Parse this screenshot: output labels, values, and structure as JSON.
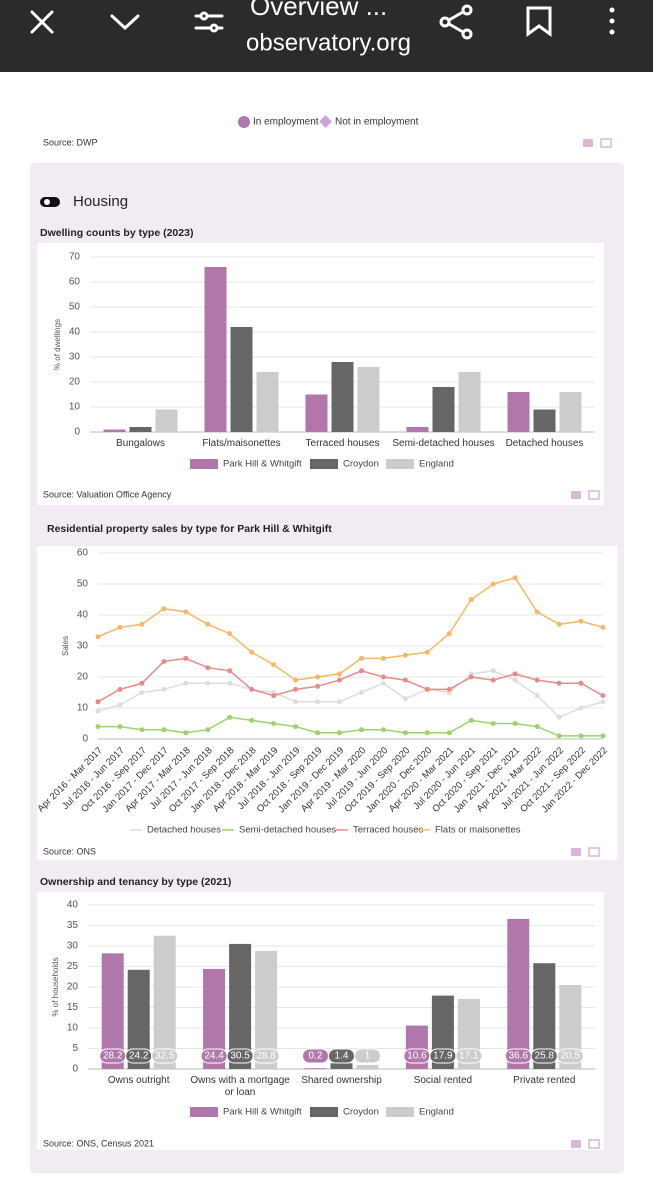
{
  "browser": {
    "title": "Overview ...",
    "url": "observatory.org"
  },
  "previous_chart": {
    "legend": [
      "In employment",
      "Not in employment"
    ],
    "source": "Source: DWP"
  },
  "section_title": "Housing",
  "chart_data": [
    {
      "type": "bar",
      "title": "Dwelling counts by type (2023)",
      "y_label": "% of dwellings",
      "categories": [
        "Bungalows",
        "Flats/maisonettes",
        "Terraced houses",
        "Semi-detached houses",
        "Detached houses"
      ],
      "series": [
        {
          "name": "Park Hill & Whitgift",
          "color": "#b176aa",
          "values": [
            1,
            66,
            15,
            2,
            16
          ]
        },
        {
          "name": "Croydon",
          "color": "#666666",
          "values": [
            2,
            42,
            28,
            18,
            9
          ]
        },
        {
          "name": "England",
          "color": "#cccccc",
          "values": [
            9,
            24,
            26,
            24,
            16
          ]
        }
      ],
      "ylim": [
        0,
        70
      ],
      "yticks": [
        0,
        10,
        20,
        30,
        40,
        50,
        60,
        70
      ],
      "grid": true,
      "data_labels": false,
      "source": "Source: Valuation Office Agency"
    },
    {
      "type": "line",
      "title": "Residential property sales by type for Park Hill & Whitgift",
      "y_label": "Sales",
      "categories": [
        "Apr 2016 - Mar 2017",
        "Jul 2016 - Jun 2017",
        "Oct 2016 - Sep 2017",
        "Jan 2017 - Dec 2017",
        "Apr 2017 - Mar 2018",
        "Jul 2017 - Jun 2018",
        "Oct 2017 - Sep 2018",
        "Jan 2018 - Dec 2018",
        "Apr 2018 - Mar 2019",
        "Jul 2018 - Jun 2019",
        "Oct 2018 - Sep 2019",
        "Jan 2019 - Dec 2019",
        "Apr 2019 - Mar 2020",
        "Jul 2019 - Jun 2020",
        "Oct 2019 - Sep 2020",
        "Jan 2020 - Dec 2020",
        "Apr 2020 - Mar 2021",
        "Jul 2020 - Jun 2021",
        "Oct 2020 - Sep 2021",
        "Jan 2021 - Dec 2021",
        "Apr 2021 - Mar 2022",
        "Jul 2021 - Jun 2022",
        "Oct 2021 - Sep 2022",
        "Jan 2022 - Dec 2022"
      ],
      "series": [
        {
          "name": "Detached houses",
          "color": "#dddddd",
          "values": [
            9,
            11,
            15,
            16,
            18,
            18,
            18,
            16,
            15,
            12,
            12,
            12,
            15,
            18,
            13,
            16,
            15,
            21,
            22,
            19,
            14,
            7,
            10,
            12
          ]
        },
        {
          "name": "Semi-detached houses",
          "color": "#9bd36a",
          "values": [
            4,
            4,
            3,
            3,
            2,
            3,
            7,
            6,
            5,
            4,
            2,
            2,
            3,
            3,
            2,
            2,
            2,
            6,
            5,
            5,
            4,
            1,
            1,
            1
          ]
        },
        {
          "name": "Terraced houses",
          "color": "#e88a8a",
          "values": [
            12,
            16,
            18,
            25,
            26,
            23,
            22,
            16,
            14,
            16,
            17,
            19,
            22,
            20,
            19,
            16,
            16,
            20,
            19,
            21,
            19,
            18,
            18,
            14
          ]
        },
        {
          "name": "Flats or maisonettes",
          "color": "#f5b865",
          "values": [
            33,
            36,
            37,
            42,
            41,
            37,
            34,
            28,
            24,
            19,
            20,
            21,
            26,
            26,
            27,
            28,
            34,
            45,
            50,
            52,
            41,
            37,
            38,
            36
          ]
        }
      ],
      "ylim": [
        0,
        60
      ],
      "yticks": [
        0,
        10,
        20,
        30,
        40,
        50,
        60
      ],
      "grid": true,
      "source": "Source: ONS"
    },
    {
      "type": "bar",
      "title": "Ownership and tenancy by type (2021)",
      "y_label": "% of households",
      "categories": [
        "Owns outright",
        "Owns with a mortgage or loan",
        "Shared ownership",
        "Social rented",
        "Private rented"
      ],
      "series": [
        {
          "name": "Park Hill & Whitgift",
          "color": "#b176aa",
          "values": [
            28.2,
            24.4,
            0.2,
            10.6,
            36.6
          ]
        },
        {
          "name": "Croydon",
          "color": "#666666",
          "values": [
            24.2,
            30.5,
            1.4,
            17.9,
            25.8
          ]
        },
        {
          "name": "England",
          "color": "#cccccc",
          "values": [
            32.5,
            28.8,
            1,
            17.1,
            20.5
          ]
        }
      ],
      "ylim": [
        0,
        40
      ],
      "yticks": [
        0,
        5,
        10,
        15,
        20,
        25,
        30,
        35,
        40
      ],
      "grid": true,
      "data_labels": true,
      "source": "Source: ONS, Census 2021"
    }
  ]
}
